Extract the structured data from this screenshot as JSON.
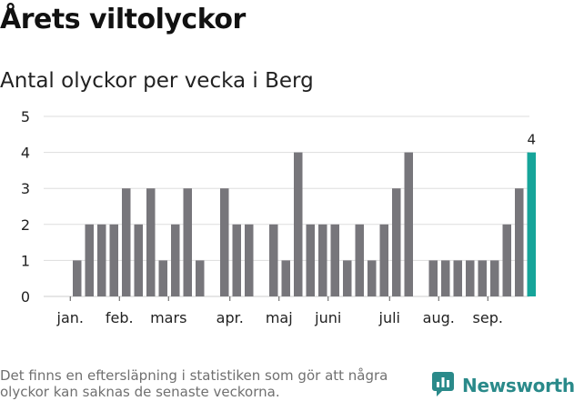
{
  "header": {
    "title": "Årets viltolyckor",
    "subtitle": "Antal olyckor per vecka i Berg"
  },
  "footer": {
    "note": "Det finns en eftersläpning i statistiken som gör att några olyckor kan saknas de senaste veckorna.",
    "logo_text": "Newsworthy"
  },
  "colors": {
    "bar": "#77767b",
    "highlight": "#16a59a",
    "grid": "#dddddd",
    "brand": "#2a8a8a"
  },
  "chart_data": {
    "type": "bar",
    "title": "Årets viltolyckor",
    "subtitle": "Antal olyckor per vecka i Berg",
    "xlabel": "",
    "ylabel": "",
    "ylim": [
      0,
      5
    ],
    "yticks": [
      "0",
      "1",
      "2",
      "3",
      "4",
      "5"
    ],
    "grid": true,
    "legend": "none",
    "weeks": [
      1,
      2,
      3,
      4,
      5,
      6,
      7,
      8,
      9,
      10,
      11,
      12,
      13,
      14,
      15,
      16,
      17,
      18,
      19,
      20,
      21,
      22,
      23,
      24,
      25,
      26,
      27,
      28,
      29,
      30,
      31,
      32,
      33,
      34,
      35,
      36,
      37,
      38,
      39
    ],
    "values": [
      0,
      1,
      2,
      2,
      2,
      3,
      2,
      3,
      1,
      2,
      3,
      1,
      0,
      3,
      2,
      2,
      0,
      2,
      1,
      4,
      2,
      2,
      2,
      1,
      2,
      1,
      2,
      3,
      4,
      0,
      1,
      1,
      1,
      1,
      1,
      1,
      2,
      3,
      4
    ],
    "highlight_index": 38,
    "highlight_label": "4",
    "month_labels": [
      {
        "label": "jan.",
        "week": 1
      },
      {
        "label": "feb.",
        "week": 5
      },
      {
        "label": "mars",
        "week": 9
      },
      {
        "label": "apr.",
        "week": 14
      },
      {
        "label": "maj",
        "week": 18
      },
      {
        "label": "juni",
        "week": 22
      },
      {
        "label": "juli",
        "week": 27
      },
      {
        "label": "aug.",
        "week": 31
      },
      {
        "label": "sep.",
        "week": 35
      }
    ]
  }
}
